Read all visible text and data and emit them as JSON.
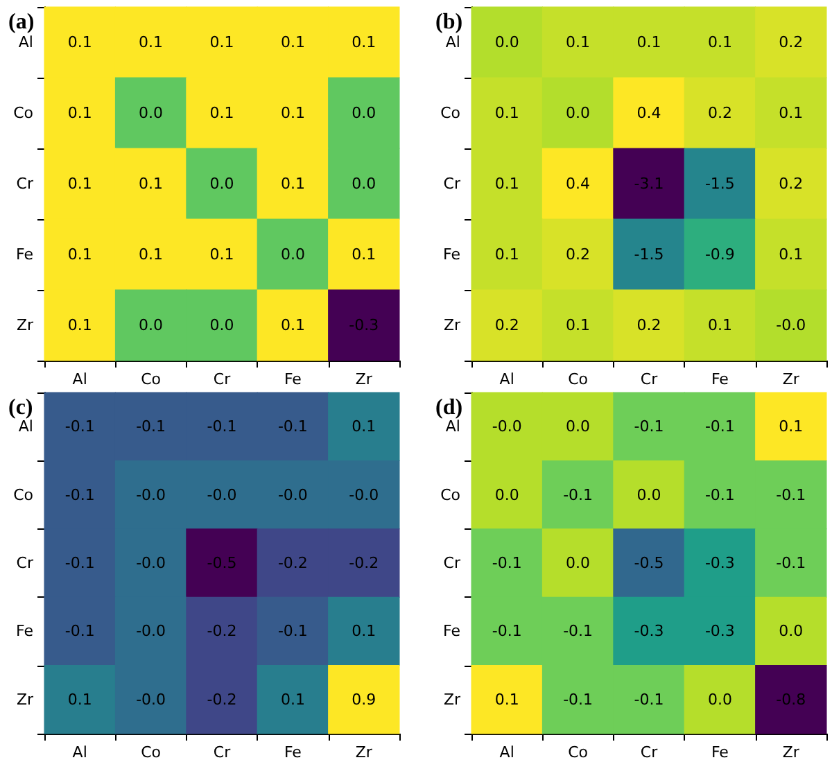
{
  "chart_data": [
    {
      "type": "heatmap",
      "title": "(a)",
      "categories": [
        "Al",
        "Co",
        "Cr",
        "Fe",
        "Zr"
      ],
      "y_categories": [
        "Al",
        "Co",
        "Cr",
        "Fe",
        "Zr"
      ],
      "cells": [
        [
          0.1,
          0.1,
          0.1,
          0.1,
          0.1
        ],
        [
          0.1,
          0.0,
          0.1,
          0.1,
          0.0
        ],
        [
          0.1,
          0.1,
          0.0,
          0.1,
          0.0
        ],
        [
          0.1,
          0.1,
          0.1,
          0.0,
          0.1
        ],
        [
          0.1,
          0.0,
          0.0,
          0.1,
          -0.3
        ]
      ],
      "cell_labels": [
        [
          "0.1",
          "0.1",
          "0.1",
          "0.1",
          "0.1"
        ],
        [
          "0.1",
          "0.0",
          "0.1",
          "0.1",
          "0.0"
        ],
        [
          "0.1",
          "0.1",
          "0.0",
          "0.1",
          "0.0"
        ],
        [
          "0.1",
          "0.1",
          "0.1",
          "0.0",
          "0.1"
        ],
        [
          "0.1",
          "0.0",
          "0.0",
          "0.1",
          "-0.3"
        ]
      ]
    },
    {
      "type": "heatmap",
      "title": "(b)",
      "categories": [
        "Al",
        "Co",
        "Cr",
        "Fe",
        "Zr"
      ],
      "y_categories": [
        "Al",
        "Co",
        "Cr",
        "Fe",
        "Zr"
      ],
      "cells": [
        [
          0.0,
          0.1,
          0.1,
          0.1,
          0.2
        ],
        [
          0.1,
          0.0,
          0.4,
          0.2,
          0.1
        ],
        [
          0.1,
          0.4,
          -3.1,
          -1.5,
          0.2
        ],
        [
          0.1,
          0.2,
          -1.5,
          -0.9,
          0.1
        ],
        [
          0.2,
          0.1,
          0.2,
          0.1,
          -0.0
        ]
      ],
      "cell_labels": [
        [
          "0.0",
          "0.1",
          "0.1",
          "0.1",
          "0.2"
        ],
        [
          "0.1",
          "0.0",
          "0.4",
          "0.2",
          "0.1"
        ],
        [
          "0.1",
          "0.4",
          "-3.1",
          "-1.5",
          "0.2"
        ],
        [
          "0.1",
          "0.2",
          "-1.5",
          "-0.9",
          "0.1"
        ],
        [
          "0.2",
          "0.1",
          "0.2",
          "0.1",
          "-0.0"
        ]
      ]
    },
    {
      "type": "heatmap",
      "title": "(c)",
      "categories": [
        "Al",
        "Co",
        "Cr",
        "Fe",
        "Zr"
      ],
      "y_categories": [
        "Al",
        "Co",
        "Cr",
        "Fe",
        "Zr"
      ],
      "cells": [
        [
          -0.1,
          -0.1,
          -0.1,
          -0.1,
          0.1
        ],
        [
          -0.1,
          -0.0,
          -0.0,
          -0.0,
          -0.0
        ],
        [
          -0.1,
          -0.0,
          -0.5,
          -0.2,
          -0.2
        ],
        [
          -0.1,
          -0.0,
          -0.2,
          -0.1,
          0.1
        ],
        [
          0.1,
          -0.0,
          -0.2,
          0.1,
          0.9
        ]
      ],
      "cell_labels": [
        [
          "-0.1",
          "-0.1",
          "-0.1",
          "-0.1",
          "0.1"
        ],
        [
          "-0.1",
          "-0.0",
          "-0.0",
          "-0.0",
          "-0.0"
        ],
        [
          "-0.1",
          "-0.0",
          "-0.5",
          "-0.2",
          "-0.2"
        ],
        [
          "-0.1",
          "-0.0",
          "-0.2",
          "-0.1",
          "0.1"
        ],
        [
          "0.1",
          "-0.0",
          "-0.2",
          "0.1",
          "0.9"
        ]
      ]
    },
    {
      "type": "heatmap",
      "title": "(d)",
      "categories": [
        "Al",
        "Co",
        "Cr",
        "Fe",
        "Zr"
      ],
      "y_categories": [
        "Al",
        "Co",
        "Cr",
        "Fe",
        "Zr"
      ],
      "cells": [
        [
          -0.0,
          0.0,
          -0.1,
          -0.1,
          0.1
        ],
        [
          0.0,
          -0.1,
          0.0,
          -0.1,
          -0.1
        ],
        [
          -0.1,
          0.0,
          -0.5,
          -0.3,
          -0.1
        ],
        [
          -0.1,
          -0.1,
          -0.3,
          -0.3,
          0.0
        ],
        [
          0.1,
          -0.1,
          -0.1,
          0.0,
          -0.8
        ]
      ],
      "cell_labels": [
        [
          "-0.0",
          "0.0",
          "-0.1",
          "-0.1",
          "0.1"
        ],
        [
          "0.0",
          "-0.1",
          "0.0",
          "-0.1",
          "-0.1"
        ],
        [
          "-0.1",
          "0.0",
          "-0.5",
          "-0.3",
          "-0.1"
        ],
        [
          "-0.1",
          "-0.1",
          "-0.3",
          "-0.3",
          "0.0"
        ],
        [
          "0.1",
          "-0.1",
          "-0.1",
          "0.0",
          "-0.8"
        ]
      ]
    }
  ]
}
